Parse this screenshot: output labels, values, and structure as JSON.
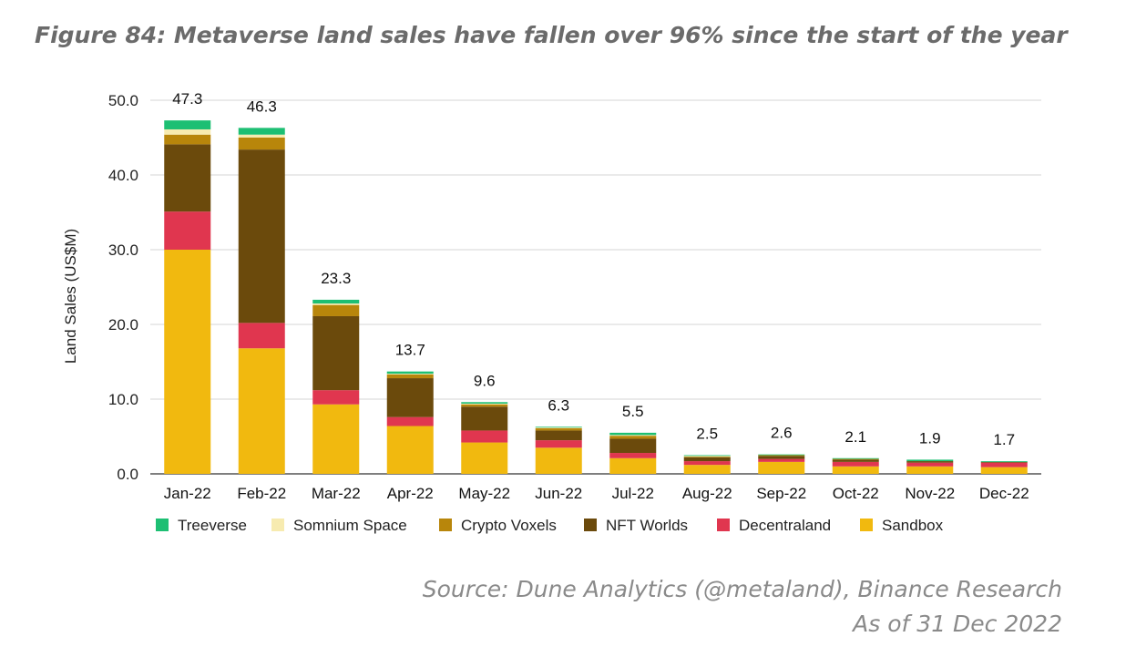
{
  "title": "Figure 84: Metaverse land sales have fallen over 96% since the start of the year",
  "source": {
    "line1": "Source: Dune Analytics (@metaland), Binance Research",
    "line2": "As of 31 Dec 2022"
  },
  "chart_data": {
    "type": "bar",
    "stacked": true,
    "title": "",
    "xlabel": "",
    "ylabel": "Land Sales (US$M)",
    "ylim": [
      0,
      50
    ],
    "yticks": [
      "0.0",
      "10.0",
      "20.0",
      "30.0",
      "40.0",
      "50.0"
    ],
    "grid": true,
    "legend_position": "bottom",
    "categories": [
      "Jan-22",
      "Feb-22",
      "Mar-22",
      "Apr-22",
      "May-22",
      "Jun-22",
      "Jul-22",
      "Aug-22",
      "Sep-22",
      "Oct-22",
      "Nov-22",
      "Dec-22"
    ],
    "totals": [
      "47.3",
      "46.3",
      "23.3",
      "13.7",
      "9.6",
      "6.3",
      "5.5",
      "2.5",
      "2.6",
      "2.1",
      "1.9",
      "1.7"
    ],
    "series": [
      {
        "name": "Sandbox",
        "color": "#f1b90f",
        "values": [
          30.0,
          16.8,
          9.3,
          6.4,
          4.2,
          3.5,
          2.1,
          1.2,
          1.6,
          1.0,
          1.0,
          0.9
        ]
      },
      {
        "name": "Decentraland",
        "color": "#e0364f",
        "values": [
          5.1,
          3.4,
          1.9,
          1.2,
          1.6,
          1.0,
          0.7,
          0.5,
          0.4,
          0.6,
          0.5,
          0.6
        ]
      },
      {
        "name": "NFT Worlds",
        "color": "#6b4a0c",
        "values": [
          9.0,
          23.2,
          9.9,
          5.2,
          3.2,
          1.3,
          1.9,
          0.5,
          0.4,
          0.3,
          0.2,
          0.1
        ]
      },
      {
        "name": "Crypto Voxels",
        "color": "#b8860b",
        "values": [
          1.3,
          1.6,
          1.5,
          0.5,
          0.3,
          0.3,
          0.4,
          0.1,
          0.1,
          0.1,
          0.0,
          0.0
        ]
      },
      {
        "name": "Somnium Space",
        "color": "#f7ebb0",
        "values": [
          0.7,
          0.4,
          0.2,
          0.1,
          0.1,
          0.1,
          0.1,
          0.1,
          0.0,
          0.0,
          0.0,
          0.0
        ]
      },
      {
        "name": "Treeverse",
        "color": "#1dbf73",
        "values": [
          1.2,
          0.9,
          0.5,
          0.3,
          0.2,
          0.1,
          0.3,
          0.1,
          0.1,
          0.1,
          0.2,
          0.1
        ]
      }
    ],
    "legend_order": [
      "Treeverse",
      "Somnium Space",
      "Crypto Voxels",
      "NFT Worlds",
      "Decentraland",
      "Sandbox"
    ]
  }
}
